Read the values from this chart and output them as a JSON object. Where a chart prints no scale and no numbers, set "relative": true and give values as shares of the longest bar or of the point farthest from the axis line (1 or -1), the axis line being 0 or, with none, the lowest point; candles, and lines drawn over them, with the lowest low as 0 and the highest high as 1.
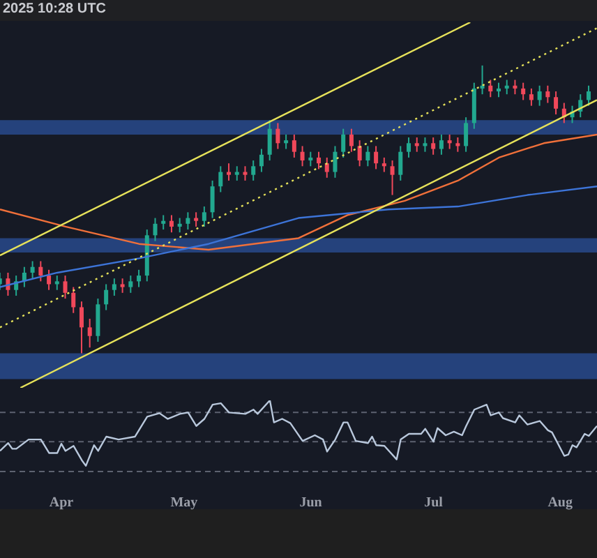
{
  "chart_data": [
    {
      "type": "candlestick",
      "relative": true,
      "annotations": [
        "2025 10:28 UTC"
      ],
      "xlim": [
        "2025-03-17",
        "2025-08-10"
      ],
      "tick_labels": false,
      "x": [
        "2025-03-17",
        "2025-03-19",
        "2025-03-21",
        "2025-03-23",
        "2025-03-25",
        "2025-03-27",
        "2025-03-29",
        "2025-03-31",
        "2025-04-02",
        "2025-04-04",
        "2025-04-06",
        "2025-04-08",
        "2025-04-10",
        "2025-04-12",
        "2025-04-14",
        "2025-04-16",
        "2025-04-18",
        "2025-04-20",
        "2025-04-22",
        "2025-04-24",
        "2025-04-26",
        "2025-04-28",
        "2025-04-30",
        "2025-05-02",
        "2025-05-04",
        "2025-05-06",
        "2025-05-08",
        "2025-05-10",
        "2025-05-12",
        "2025-05-14",
        "2025-05-16",
        "2025-05-18",
        "2025-05-20",
        "2025-05-22",
        "2025-05-24",
        "2025-05-26",
        "2025-05-28",
        "2025-05-30",
        "2025-06-01",
        "2025-06-03",
        "2025-06-05",
        "2025-06-07",
        "2025-06-09",
        "2025-06-11",
        "2025-06-13",
        "2025-06-15",
        "2025-06-17",
        "2025-06-19",
        "2025-06-21",
        "2025-06-23",
        "2025-06-25",
        "2025-06-27",
        "2025-06-29",
        "2025-07-01",
        "2025-07-03",
        "2025-07-05",
        "2025-07-07",
        "2025-07-09",
        "2025-07-11",
        "2025-07-13",
        "2025-07-15",
        "2025-07-17",
        "2025-07-19",
        "2025-07-21",
        "2025-07-23",
        "2025-07-25",
        "2025-07-27",
        "2025-07-29",
        "2025-07-31",
        "2025-08-02",
        "2025-08-04",
        "2025-08-06",
        "2025-08-08"
      ],
      "ohlc": [
        [
          0.24,
          0.28,
          0.22,
          0.26
        ],
        [
          0.26,
          0.28,
          0.2,
          0.22
        ],
        [
          0.22,
          0.27,
          0.2,
          0.25
        ],
        [
          0.25,
          0.3,
          0.23,
          0.28
        ],
        [
          0.28,
          0.32,
          0.26,
          0.3
        ],
        [
          0.3,
          0.32,
          0.25,
          0.27
        ],
        [
          0.27,
          0.29,
          0.22,
          0.24
        ],
        [
          0.24,
          0.27,
          0.22,
          0.25
        ],
        [
          0.25,
          0.27,
          0.19,
          0.21
        ],
        [
          0.21,
          0.23,
          0.14,
          0.16
        ],
        [
          0.16,
          0.18,
          0,
          0.09
        ],
        [
          0.09,
          0.12,
          0.02,
          0.06
        ],
        [
          0.06,
          0.19,
          0.04,
          0.17
        ],
        [
          0.17,
          0.24,
          0.15,
          0.22
        ],
        [
          0.22,
          0.26,
          0.2,
          0.24
        ],
        [
          0.24,
          0.26,
          0.21,
          0.23
        ],
        [
          0.23,
          0.27,
          0.21,
          0.25
        ],
        [
          0.25,
          0.29,
          0.23,
          0.27
        ],
        [
          0.27,
          0.43,
          0.25,
          0.41
        ],
        [
          0.41,
          0.47,
          0.39,
          0.45
        ],
        [
          0.45,
          0.48,
          0.43,
          0.46
        ],
        [
          0.46,
          0.48,
          0.42,
          0.44
        ],
        [
          0.44,
          0.47,
          0.42,
          0.45
        ],
        [
          0.45,
          0.49,
          0.43,
          0.47
        ],
        [
          0.47,
          0.49,
          0.44,
          0.46
        ],
        [
          0.46,
          0.51,
          0.44,
          0.49
        ],
        [
          0.49,
          0.6,
          0.47,
          0.58
        ],
        [
          0.58,
          0.65,
          0.56,
          0.63
        ],
        [
          0.63,
          0.66,
          0.6,
          0.62
        ],
        [
          0.62,
          0.65,
          0.6,
          0.63
        ],
        [
          0.63,
          0.65,
          0.6,
          0.62
        ],
        [
          0.62,
          0.67,
          0.6,
          0.65
        ],
        [
          0.65,
          0.71,
          0.63,
          0.69
        ],
        [
          0.69,
          0.81,
          0.67,
          0.78
        ],
        [
          0.78,
          0.8,
          0.71,
          0.73
        ],
        [
          0.73,
          0.76,
          0.71,
          0.74
        ],
        [
          0.74,
          0.76,
          0.68,
          0.7
        ],
        [
          0.7,
          0.72,
          0.65,
          0.67
        ],
        [
          0.67,
          0.7,
          0.65,
          0.68
        ],
        [
          0.68,
          0.7,
          0.64,
          0.66
        ],
        [
          0.66,
          0.68,
          0.61,
          0.63
        ],
        [
          0.63,
          0.72,
          0.61,
          0.7
        ],
        [
          0.7,
          0.78,
          0.68,
          0.76
        ],
        [
          0.76,
          0.78,
          0.7,
          0.72
        ],
        [
          0.72,
          0.74,
          0.65,
          0.67
        ],
        [
          0.67,
          0.72,
          0.65,
          0.7
        ],
        [
          0.7,
          0.72,
          0.64,
          0.66
        ],
        [
          0.66,
          0.68,
          0.63,
          0.65
        ],
        [
          0.65,
          0.67,
          0.55,
          0.62
        ],
        [
          0.62,
          0.72,
          0.6,
          0.7
        ],
        [
          0.7,
          0.75,
          0.68,
          0.73
        ],
        [
          0.73,
          0.75,
          0.7,
          0.72
        ],
        [
          0.72,
          0.75,
          0.7,
          0.73
        ],
        [
          0.73,
          0.75,
          0.69,
          0.71
        ],
        [
          0.71,
          0.76,
          0.69,
          0.74
        ],
        [
          0.74,
          0.76,
          0.71,
          0.73
        ],
        [
          0.73,
          0.75,
          0.7,
          0.72
        ],
        [
          0.72,
          0.82,
          0.7,
          0.8
        ],
        [
          0.8,
          0.94,
          0.78,
          0.92
        ],
        [
          0.92,
          1,
          0.9,
          0.93
        ],
        [
          0.93,
          0.95,
          0.89,
          0.91
        ],
        [
          0.91,
          0.94,
          0.89,
          0.92
        ],
        [
          0.92,
          0.95,
          0.9,
          0.93
        ],
        [
          0.93,
          0.95,
          0.9,
          0.92
        ],
        [
          0.92,
          0.94,
          0.88,
          0.9
        ],
        [
          0.9,
          0.92,
          0.86,
          0.88
        ],
        [
          0.88,
          0.93,
          0.86,
          0.91
        ],
        [
          0.91,
          0.93,
          0.87,
          0.89
        ],
        [
          0.89,
          0.91,
          0.83,
          0.85
        ],
        [
          0.85,
          0.87,
          0.8,
          0.82
        ],
        [
          0.82,
          0.86,
          0.8,
          0.84
        ],
        [
          0.84,
          0.9,
          0.82,
          0.88
        ],
        [
          0.88,
          0.93,
          0.86,
          0.91
        ]
      ],
      "series": [
        {
          "type": "line",
          "color": "#f0703a",
          "x": [
            "2025-03-17",
            "2025-04-02",
            "2025-04-20",
            "2025-05-07",
            "2025-05-29",
            "2025-06-10",
            "2025-06-24",
            "2025-07-07",
            "2025-07-17",
            "2025-07-28",
            "2025-08-10"
          ],
          "values": [
            0.5,
            0.44,
            0.38,
            0.36,
            0.4,
            0.48,
            0.53,
            0.6,
            0.68,
            0.73,
            0.76
          ]
        },
        {
          "type": "line",
          "color": "#3d74d8",
          "x": [
            "2025-03-17",
            "2025-03-31",
            "2025-04-20",
            "2025-05-07",
            "2025-05-29",
            "2025-06-20",
            "2025-07-07",
            "2025-07-24",
            "2025-08-10"
          ],
          "values": [
            0.23,
            0.28,
            0.33,
            0.38,
            0.47,
            0.5,
            0.51,
            0.55,
            0.58
          ]
        },
        {
          "type": "line",
          "color": "#e6e25a",
          "x": [
            "2025-03-17",
            "2025-07-10"
          ],
          "values": [
            0.34,
            1.15
          ]
        },
        {
          "type": "line",
          "color": "#e6e25a",
          "x": [
            "2025-03-22",
            "2025-08-10"
          ],
          "values": [
            -0.12,
            0.88
          ]
        },
        {
          "type": "line",
          "color": "#e6e25a",
          "line_style": "dotted",
          "x": [
            "2025-03-17",
            "2025-08-10"
          ],
          "values": [
            0.09,
            1.13
          ]
        }
      ],
      "bands": [
        {
          "axis": "y",
          "from": 0.76,
          "to": 0.81,
          "color": "#284a8c"
        },
        {
          "axis": "y",
          "from": 0.35,
          "to": 0.4,
          "color": "#284a8c"
        },
        {
          "axis": "y",
          "from": -0.09,
          "to": 0,
          "color": "#284a8c"
        }
      ]
    },
    {
      "type": "line",
      "relative": true,
      "xlim": [
        "2025-03-17",
        "2025-08-10"
      ],
      "xticks": [
        {
          "value": "2025-04-01",
          "label": "Apr"
        },
        {
          "value": "2025-05-01",
          "label": "May"
        },
        {
          "value": "2025-06-01",
          "label": "Jun"
        },
        {
          "value": "2025-07-01",
          "label": "Jul"
        },
        {
          "value": "2025-08-01",
          "label": "Aug"
        }
      ],
      "tick_labels": "x",
      "ref_lines": [
        {
          "axis": "y",
          "value": 0.83,
          "color": "#5d6270",
          "line_style": "dashed"
        },
        {
          "axis": "y",
          "value": 0.42,
          "color": "#5d6270",
          "line_style": "dashed"
        },
        {
          "axis": "y",
          "value": 0,
          "color": "#5d6270",
          "line_style": "dashed"
        }
      ],
      "series": [
        {
          "color": "#b9c8dc",
          "x": [
            "2025-03-17",
            "2025-03-19",
            "2025-03-20",
            "2025-03-21",
            "2025-03-24",
            "2025-03-27",
            "2025-03-29",
            "2025-03-31",
            "2025-04-01",
            "2025-04-02",
            "2025-04-04",
            "2025-04-06",
            "2025-04-07",
            "2025-04-09",
            "2025-04-10",
            "2025-04-12",
            "2025-04-15",
            "2025-04-19",
            "2025-04-22",
            "2025-04-25",
            "2025-04-27",
            "2025-04-30",
            "2025-05-02",
            "2025-05-04",
            "2025-05-06",
            "2025-05-08",
            "2025-05-10",
            "2025-05-12",
            "2025-05-16",
            "2025-05-18",
            "2025-05-19",
            "2025-05-22",
            "2025-05-23",
            "2025-05-25",
            "2025-05-27",
            "2025-05-30",
            "2025-06-02",
            "2025-06-04",
            "2025-06-05",
            "2025-06-07",
            "2025-06-09",
            "2025-06-10",
            "2025-06-12",
            "2025-06-15",
            "2025-06-16",
            "2025-06-17",
            "2025-06-19",
            "2025-06-22",
            "2025-06-23",
            "2025-06-25",
            "2025-06-28",
            "2025-06-29",
            "2025-07-01",
            "2025-07-02",
            "2025-07-04",
            "2025-07-06",
            "2025-07-08",
            "2025-07-09",
            "2025-07-11",
            "2025-07-14",
            "2025-07-15",
            "2025-07-17",
            "2025-07-18",
            "2025-07-21",
            "2025-07-22",
            "2025-07-24",
            "2025-07-27",
            "2025-07-29",
            "2025-07-30",
            "2025-08-02",
            "2025-08-03",
            "2025-08-04",
            "2025-08-05",
            "2025-08-07",
            "2025-08-08",
            "2025-08-10"
          ],
          "values": [
            0.29,
            0.4,
            0.32,
            0.32,
            0.45,
            0.45,
            0.26,
            0.26,
            0.39,
            0.29,
            0.36,
            0.16,
            0.08,
            0.37,
            0.29,
            0.49,
            0.45,
            0.49,
            0.77,
            0.82,
            0.74,
            0.81,
            0.83,
            0.64,
            0.74,
            0.94,
            0.96,
            0.83,
            0.81,
            0.87,
            0.81,
            1,
            0.69,
            0.74,
            0.68,
            0.43,
            0.51,
            0.45,
            0.28,
            0.45,
            0.69,
            0.69,
            0.43,
            0.4,
            0.49,
            0.37,
            0.36,
            0.17,
            0.45,
            0.53,
            0.53,
            0.6,
            0.42,
            0.61,
            0.51,
            0.56,
            0.51,
            0.64,
            0.87,
            0.94,
            0.79,
            0.83,
            0.75,
            0.69,
            0.79,
            0.66,
            0.71,
            0.58,
            0.55,
            0.22,
            0.24,
            0.37,
            0.34,
            0.53,
            0.5,
            0.64
          ]
        }
      ]
    }
  ]
}
